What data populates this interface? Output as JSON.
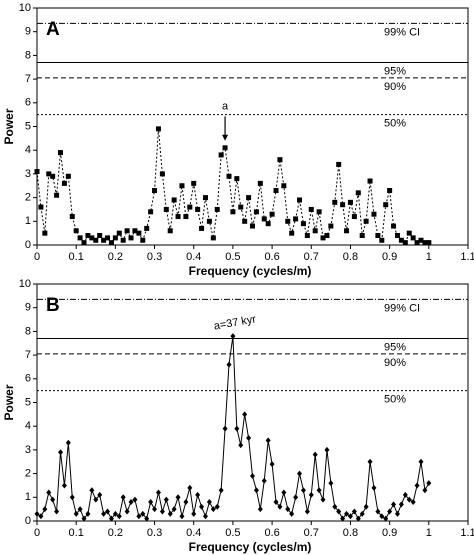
{
  "chart_data": [
    {
      "type": "line",
      "panel_label": "A",
      "marker": "square",
      "line_style": "dotted",
      "color": "#000000",
      "xlabel": "Frequency (cycles/m)",
      "ylabel": "Power",
      "xlim": [
        0,
        1.1
      ],
      "ylim": [
        0,
        10
      ],
      "xticks": [
        0,
        0.1,
        0.2,
        0.3,
        0.4,
        0.5,
        0.6,
        0.7,
        0.8,
        0.9,
        1,
        1.1
      ],
      "yticks": [
        0,
        1,
        2,
        3,
        4,
        5,
        6,
        7,
        8,
        9,
        10
      ],
      "thresholds": [
        {
          "label": "99% CI",
          "value": 9.35,
          "style": "dashdot"
        },
        {
          "label": "95%",
          "value": 7.7,
          "style": "solid"
        },
        {
          "label": "90%",
          "value": 7.05,
          "style": "dashed"
        },
        {
          "label": "50%",
          "value": 5.5,
          "style": "dotted"
        }
      ],
      "annotation": {
        "text": "a",
        "x": 0.48,
        "y": 5.85,
        "arrow_to": 4.4
      },
      "x": [
        0,
        0.01,
        0.02,
        0.03,
        0.04,
        0.05,
        0.06,
        0.07,
        0.08,
        0.09,
        0.1,
        0.11,
        0.12,
        0.13,
        0.14,
        0.15,
        0.16,
        0.17,
        0.18,
        0.19,
        0.2,
        0.21,
        0.22,
        0.23,
        0.24,
        0.25,
        0.26,
        0.27,
        0.28,
        0.29,
        0.3,
        0.31,
        0.32,
        0.33,
        0.34,
        0.35,
        0.36,
        0.37,
        0.38,
        0.39,
        0.4,
        0.41,
        0.42,
        0.43,
        0.44,
        0.45,
        0.46,
        0.47,
        0.48,
        0.49,
        0.5,
        0.51,
        0.52,
        0.53,
        0.54,
        0.55,
        0.56,
        0.57,
        0.58,
        0.59,
        0.6,
        0.61,
        0.62,
        0.63,
        0.64,
        0.65,
        0.66,
        0.67,
        0.68,
        0.69,
        0.7,
        0.71,
        0.72,
        0.73,
        0.74,
        0.75,
        0.76,
        0.77,
        0.78,
        0.79,
        0.8,
        0.81,
        0.82,
        0.83,
        0.84,
        0.85,
        0.86,
        0.87,
        0.88,
        0.89,
        0.9,
        0.91,
        0.92,
        0.93,
        0.94,
        0.95,
        0.96,
        0.97,
        0.98,
        0.99,
        1
      ],
      "values": [
        3.1,
        1.6,
        0.5,
        3.0,
        2.9,
        2.1,
        3.9,
        2.6,
        2.9,
        1.2,
        0.6,
        0.3,
        0.1,
        0.4,
        0.3,
        0.2,
        0.4,
        0.2,
        0.3,
        0.1,
        0.3,
        0.5,
        0.2,
        0.6,
        0.3,
        0.6,
        0.5,
        0.2,
        0.7,
        1.4,
        2.3,
        4.9,
        3.0,
        1.5,
        0.6,
        1.9,
        1.2,
        2.5,
        1.2,
        1.6,
        2.6,
        1.5,
        0.7,
        2.0,
        1.0,
        0.3,
        1.5,
        3.8,
        4.1,
        2.9,
        1.4,
        2.8,
        1.6,
        1.0,
        2.0,
        0.8,
        1.4,
        2.6,
        1.1,
        0.9,
        1.3,
        2.3,
        3.6,
        2.5,
        1.0,
        0.5,
        1.1,
        1.9,
        0.9,
        0.4,
        1.5,
        0.6,
        1.4,
        0.3,
        0.4,
        0.8,
        1.8,
        3.4,
        1.7,
        0.6,
        1.8,
        1.2,
        2.2,
        0.4,
        1.0,
        2.7,
        1.3,
        0.4,
        0.2,
        1.7,
        2.3,
        0.8,
        0.4,
        0.2,
        0.1,
        0.5,
        0.3,
        0.1,
        0.2,
        0.1,
        0.1
      ]
    },
    {
      "type": "line",
      "panel_label": "B",
      "marker": "diamond",
      "line_style": "solid",
      "color": "#000000",
      "xlabel": "Frequency (cycles/m)",
      "ylabel": "Power",
      "xlim": [
        0,
        1.1
      ],
      "ylim": [
        0,
        10
      ],
      "xticks": [
        0,
        0.1,
        0.2,
        0.3,
        0.4,
        0.5,
        0.6,
        0.7,
        0.8,
        0.9,
        1,
        1.1
      ],
      "yticks": [
        0,
        1,
        2,
        3,
        4,
        5,
        6,
        7,
        8,
        9,
        10
      ],
      "thresholds": [
        {
          "label": "99% CI",
          "value": 9.35,
          "style": "dashdot"
        },
        {
          "label": "95%",
          "value": 7.7,
          "style": "solid"
        },
        {
          "label": "90%",
          "value": 7.05,
          "style": "dashed"
        },
        {
          "label": "50%",
          "value": 5.5,
          "style": "dotted"
        }
      ],
      "annotation": {
        "text": "a=37 kyr",
        "x": 0.5,
        "y": 8.1
      },
      "x": [
        0,
        0.01,
        0.02,
        0.03,
        0.04,
        0.05,
        0.06,
        0.07,
        0.08,
        0.09,
        0.1,
        0.11,
        0.12,
        0.13,
        0.14,
        0.15,
        0.16,
        0.17,
        0.18,
        0.19,
        0.2,
        0.21,
        0.22,
        0.23,
        0.24,
        0.25,
        0.26,
        0.27,
        0.28,
        0.29,
        0.3,
        0.31,
        0.32,
        0.33,
        0.34,
        0.35,
        0.36,
        0.37,
        0.38,
        0.39,
        0.4,
        0.41,
        0.42,
        0.43,
        0.44,
        0.45,
        0.46,
        0.47,
        0.48,
        0.49,
        0.5,
        0.51,
        0.52,
        0.53,
        0.54,
        0.55,
        0.56,
        0.57,
        0.58,
        0.59,
        0.6,
        0.61,
        0.62,
        0.63,
        0.64,
        0.65,
        0.66,
        0.67,
        0.68,
        0.69,
        0.7,
        0.71,
        0.72,
        0.73,
        0.74,
        0.75,
        0.76,
        0.77,
        0.78,
        0.79,
        0.8,
        0.81,
        0.82,
        0.83,
        0.84,
        0.85,
        0.86,
        0.87,
        0.88,
        0.89,
        0.9,
        0.91,
        0.92,
        0.93,
        0.94,
        0.95,
        0.96,
        0.97,
        0.98,
        0.99,
        1
      ],
      "values": [
        0.3,
        0.2,
        0.5,
        1.2,
        0.9,
        0.4,
        2.9,
        1.5,
        3.3,
        1.0,
        0.3,
        0.5,
        0.1,
        0.3,
        1.3,
        0.9,
        1.1,
        0.3,
        0.4,
        0.1,
        0.3,
        0.2,
        1.0,
        0.4,
        0.8,
        0.9,
        0.2,
        0.3,
        0.1,
        0.8,
        0.5,
        1.2,
        0.4,
        0.9,
        0.3,
        0.5,
        1.0,
        0.2,
        0.8,
        1.4,
        0.3,
        1.1,
        0.6,
        0.2,
        0.8,
        0.5,
        0.6,
        1.3,
        3.9,
        6.6,
        7.8,
        3.9,
        3.2,
        4.5,
        3.5,
        1.9,
        1.3,
        0.5,
        1.7,
        3.4,
        2.4,
        0.8,
        0.6,
        1.2,
        0.5,
        0.3,
        1.0,
        2.0,
        1.3,
        0.4,
        1.1,
        2.8,
        1.3,
        0.9,
        3.0,
        1.6,
        0.6,
        0.4,
        0.1,
        0.3,
        0.2,
        0.4,
        0.1,
        0.3,
        0.6,
        2.5,
        1.4,
        0.4,
        0.2,
        0.1,
        0.4,
        0.7,
        0.3,
        0.7,
        1.1,
        0.9,
        0.8,
        1.5,
        2.5,
        1.3,
        1.6
      ]
    }
  ]
}
